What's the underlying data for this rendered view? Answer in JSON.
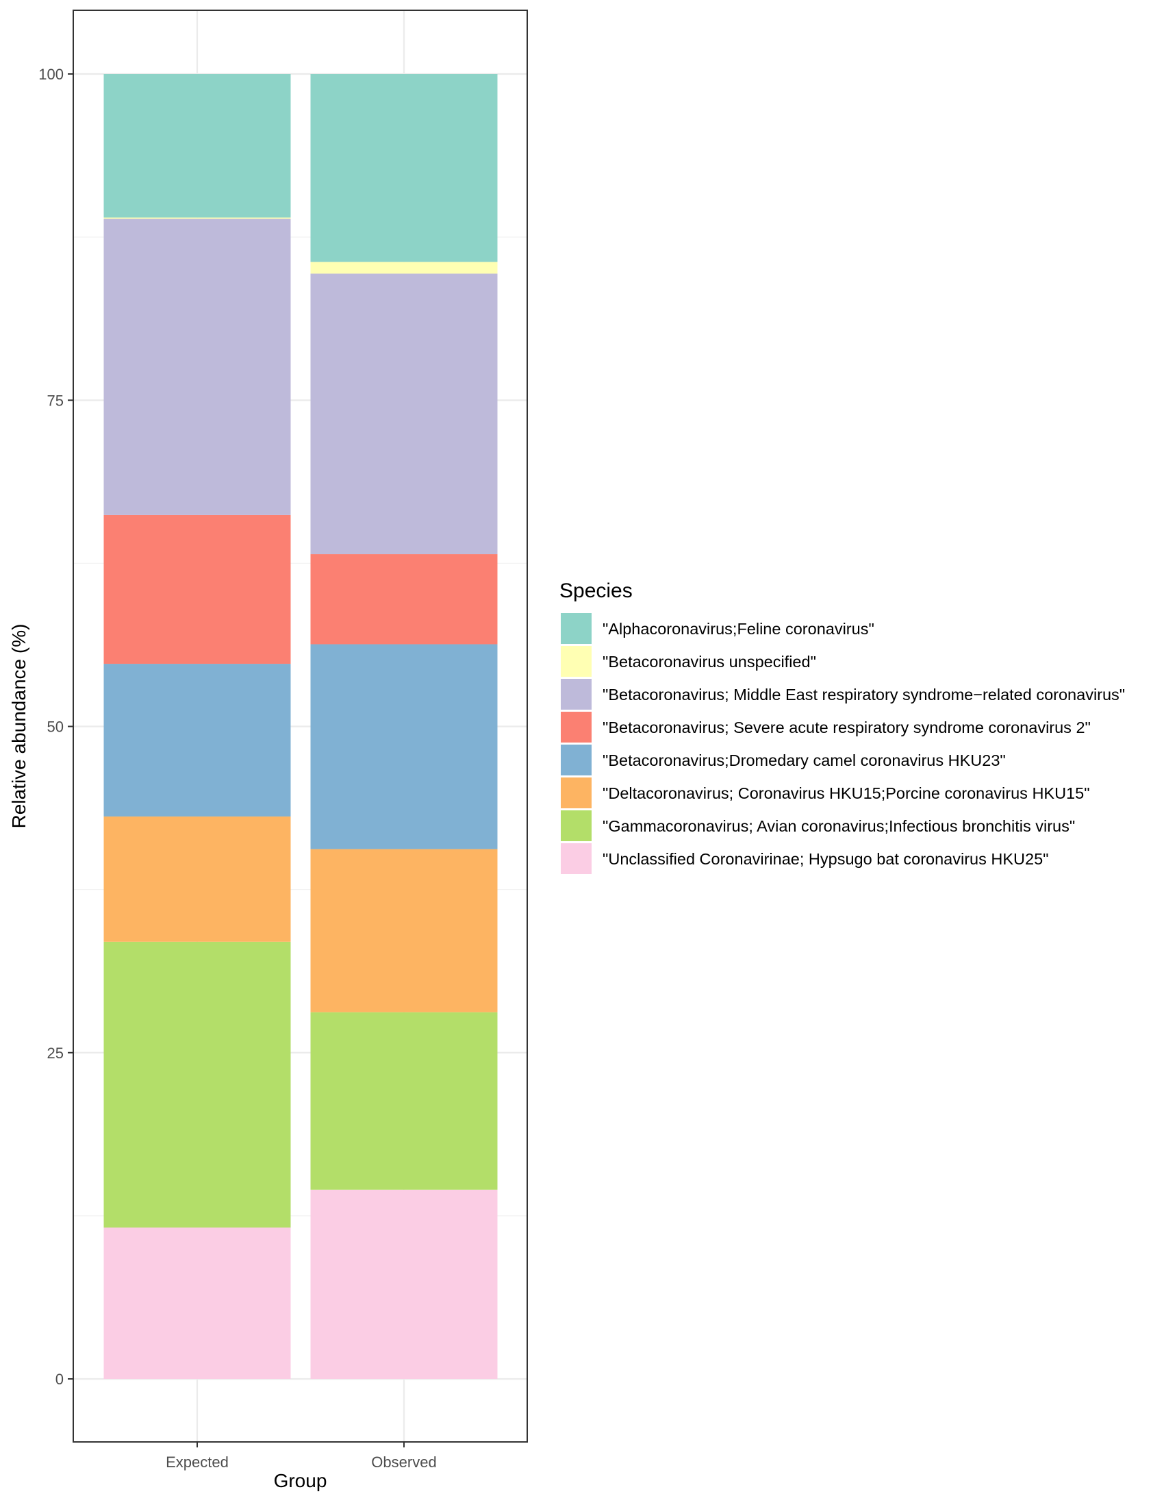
{
  "chart_data": {
    "type": "bar",
    "stacked": true,
    "categories": [
      "Expected",
      "Observed"
    ],
    "xlabel": "Group",
    "ylabel": "Relative abundance (%)",
    "ylim": [
      -5,
      105
    ],
    "yticks": [
      0,
      25,
      50,
      75,
      100
    ],
    "grid": true,
    "legend": {
      "title": "Species",
      "position": "right"
    },
    "series": [
      {
        "name": "\"Unclassified Coronavirinae; Hypsugo bat coronavirus HKU25\"",
        "color": "#FBCDE4",
        "values": [
          11.6,
          14.5
        ]
      },
      {
        "name": "\"Gammacoronavirus; Avian coronavirus;Infectious bronchitis virus\"",
        "color": "#B3DE69",
        "values": [
          21.9,
          13.6
        ]
      },
      {
        "name": "\"Deltacoronavirus; Coronavirus HKU15;Porcine coronavirus HKU15\"",
        "color": "#FDB462",
        "values": [
          9.6,
          12.5
        ]
      },
      {
        "name": "\"Betacoronavirus;Dromedary camel coronavirus HKU23\"",
        "color": "#80B1D3",
        "values": [
          11.7,
          15.7
        ]
      },
      {
        "name": "\"Betacoronavirus; Severe acute respiratory syndrome coronavirus 2\"",
        "color": "#FB8072",
        "values": [
          11.4,
          6.9
        ]
      },
      {
        "name": "\"Betacoronavirus; Middle East respiratory syndrome−related coronavirus\"",
        "color": "#BEBADA",
        "values": [
          22.7,
          21.5
        ]
      },
      {
        "name": "\"Betacoronavirus unspecified\"",
        "color": "#FFFFB3",
        "values": [
          0.1,
          0.9
        ]
      },
      {
        "name": "\"Alphacoronavirus;Feline coronavirus\"",
        "color": "#8DD3C7",
        "values": [
          11.0,
          14.4
        ]
      }
    ]
  }
}
